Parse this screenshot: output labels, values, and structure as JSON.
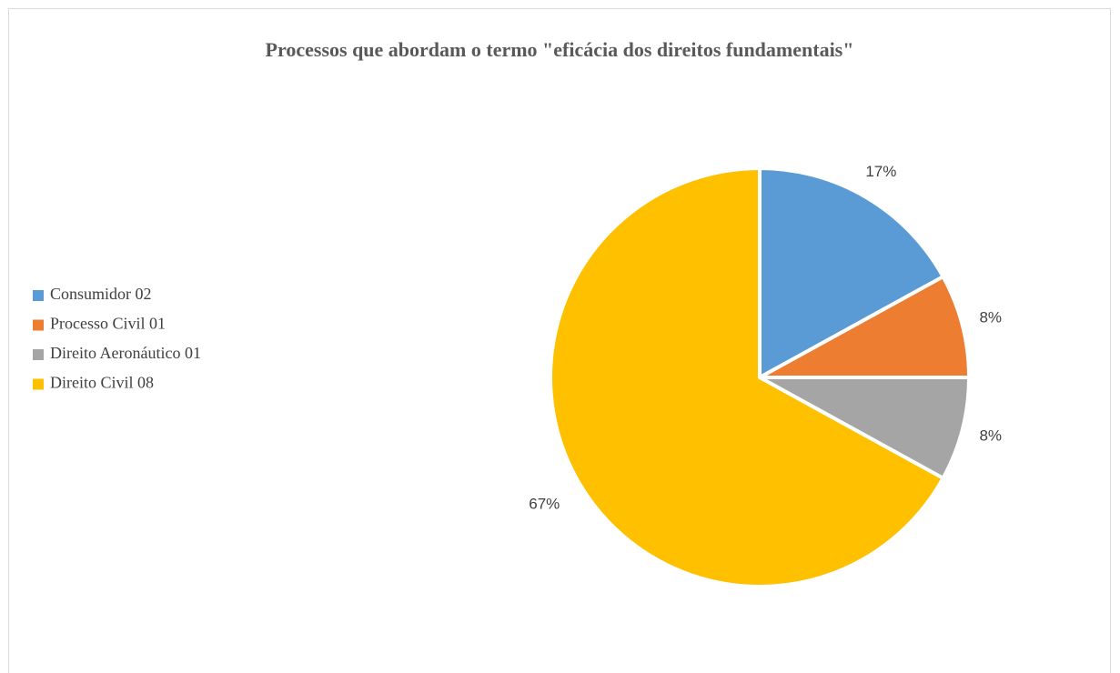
{
  "chart_data": {
    "type": "pie",
    "title": "Processos que abordam o termo \"eficácia dos direitos fundamentais\"",
    "categories": [
      "Consumidor 02",
      "Processo Civil 01",
      "Direito Aeronáutico 01",
      "Direito Civil 08"
    ],
    "values": [
      17,
      8,
      8,
      67
    ],
    "value_labels": [
      "17%",
      "8%",
      "8%",
      "67%"
    ],
    "colors": [
      "#5b9bd5",
      "#ed7d31",
      "#a5a5a5",
      "#ffc000"
    ],
    "legend": "left"
  }
}
